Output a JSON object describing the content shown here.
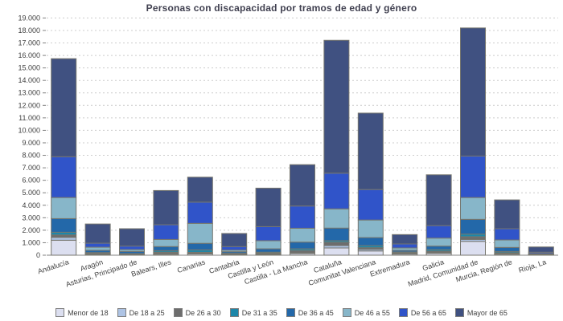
{
  "chart_data": {
    "type": "bar",
    "stacked": true,
    "title": "Personas con discapacidad por tramos de edad y género",
    "xlabel": "",
    "ylabel": "",
    "ylim": [
      0,
      19000
    ],
    "y_tick_step": 1000,
    "y_tick_labels": [
      "0",
      "1.000",
      "2.000",
      "3.000",
      "4.000",
      "5.000",
      "6.000",
      "7.000",
      "8.000",
      "9.000",
      "10.000",
      "11.000",
      "12.000",
      "13.000",
      "14.000",
      "15.000",
      "16.000",
      "17.000",
      "18.000",
      "19.000"
    ],
    "grid": "horizontal-dashed",
    "legend_position": "bottom",
    "categories": [
      "Andalucía",
      "Aragón",
      "Asturias, Principado de",
      "Balears, Illes",
      "Canarias",
      "Cantabria",
      "Castilla y León",
      "Castilla - La Mancha",
      "Cataluña",
      "Comunitat Valenciana",
      "Extremadura",
      "Galicia",
      "Madrid, Comunidad de",
      "Murcia, Región de",
      "Rioja, La"
    ],
    "series": [
      {
        "name": "Menor de 18",
        "color": "#dcdff0",
        "values": [
          1200,
          60,
          40,
          80,
          100,
          50,
          60,
          130,
          580,
          340,
          90,
          150,
          1110,
          80,
          20
        ]
      },
      {
        "name": "De 18 a 25",
        "color": "#aec4e5",
        "values": [
          230,
          50,
          30,
          60,
          50,
          30,
          40,
          60,
          190,
          130,
          40,
          60,
          150,
          40,
          10
        ]
      },
      {
        "name": "De 26 a 30",
        "color": "#6d6d6d",
        "values": [
          190,
          50,
          30,
          100,
          80,
          30,
          60,
          180,
          260,
          130,
          60,
          110,
          220,
          80,
          20
        ]
      },
      {
        "name": "De 31 a 35",
        "color": "#1d87a9",
        "values": [
          220,
          50,
          30,
          130,
          200,
          40,
          80,
          140,
          130,
          170,
          70,
          130,
          210,
          100,
          20
        ]
      },
      {
        "name": "De 36 a 45",
        "color": "#2368a9",
        "values": [
          1090,
          180,
          170,
          320,
          520,
          130,
          270,
          540,
          1010,
          640,
          130,
          280,
          1180,
          320,
          30
        ]
      },
      {
        "name": "De 46 a 55",
        "color": "#87b6c9",
        "values": [
          1690,
          250,
          150,
          570,
          1600,
          130,
          650,
          1110,
          1540,
          1410,
          190,
          640,
          1750,
          600,
          30
        ]
      },
      {
        "name": "De 56 a 65",
        "color": "#3054c9",
        "values": [
          3270,
          320,
          280,
          1180,
          1700,
          280,
          1130,
          1780,
          2860,
          2440,
          320,
          1000,
          3320,
          900,
          110
        ]
      },
      {
        "name": "Mayor de 65",
        "color": "#405181",
        "values": [
          7850,
          1540,
          1390,
          2740,
          2000,
          1050,
          3080,
          3310,
          10640,
          6120,
          750,
          4070,
          10260,
          2310,
          420
        ]
      }
    ]
  },
  "style": {
    "axis_color": "#808080",
    "grid_color": "#cccccc",
    "tick_text_color": "#404040",
    "bar_border_color": "#76766e",
    "title_color": "#3f3f4f"
  }
}
